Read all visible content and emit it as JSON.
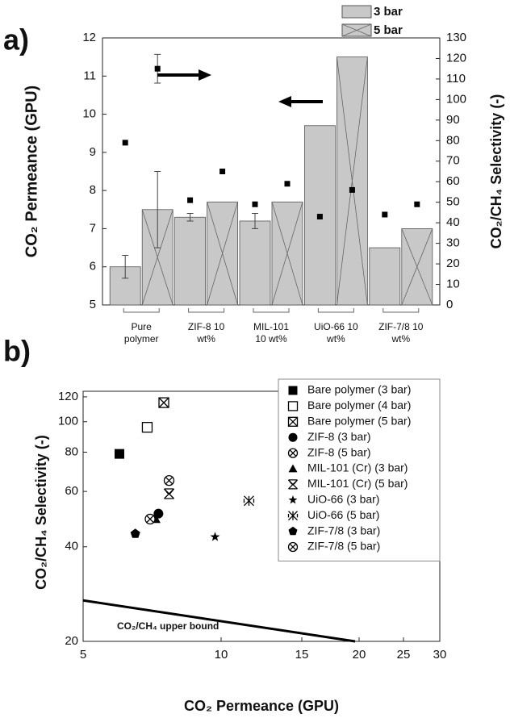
{
  "chart_data": [
    {
      "type": "bar",
      "panel_label": "a)",
      "y_label": "CO₂ Permeance (GPU)",
      "y2_label": "CO₂/CH₄ Selectivity (-)",
      "categories": [
        "Pure polymer",
        "ZIF-8 10 wt%",
        "MIL-101 10 wt%",
        "UiO-66 10 wt%",
        "ZIF-7/8 10 wt%"
      ],
      "series": [
        {
          "name": "3 bar",
          "color": "#c8c8c8",
          "values": [
            6.0,
            7.3,
            7.2,
            9.7,
            6.5
          ],
          "errors": [
            0.3,
            0.1,
            0.2,
            null,
            null
          ]
        },
        {
          "name": "5 bar",
          "color": "#c8c8c8",
          "hatch": "x",
          "values": [
            7.5,
            7.7,
            7.7,
            11.5,
            7.0
          ],
          "errors": [
            1.0,
            null,
            null,
            null,
            null
          ]
        },
        {
          "axis": "y2",
          "marker": "square",
          "color": "#000000",
          "values": [
            79,
            51,
            49,
            43,
            44
          ]
        },
        {
          "axis": "y2",
          "marker": "square",
          "color": "#000000",
          "values": [
            115,
            65,
            59,
            56,
            49
          ],
          "errors": [
            7,
            null,
            null,
            null,
            null
          ]
        }
      ],
      "ylim": [
        5,
        12
      ],
      "yticks": [
        5,
        6,
        7,
        8,
        9,
        10,
        11,
        12
      ],
      "y2lim": [
        0,
        130
      ],
      "y2ticks": [
        0,
        10,
        20,
        30,
        40,
        50,
        60,
        70,
        80,
        90,
        100,
        110,
        120,
        130
      ],
      "legend": "top-right"
    },
    {
      "type": "scatter",
      "panel_label": "b)",
      "x_label": "CO₂ Permeance (GPU)",
      "y_label": "CO₂/CH₄ Selectivity (-)",
      "xscale": "log",
      "yscale": "log",
      "xlim": [
        5,
        30
      ],
      "ylim": [
        20,
        125
      ],
      "xticks": [
        5,
        10,
        15,
        20,
        25,
        30
      ],
      "yticks": [
        20,
        40,
        60,
        80,
        100,
        120
      ],
      "legend": "top-right",
      "series": [
        {
          "name": "Bare polymer (3 bar)",
          "marker": "square",
          "color": "#000000",
          "x": [
            6.0
          ],
          "values": [
            79
          ]
        },
        {
          "name": "Bare polymer (4 bar)",
          "marker": "open-square",
          "color": "#000000",
          "x": [
            6.9
          ],
          "values": [
            96
          ]
        },
        {
          "name": "Bare polymer (5 bar)",
          "marker": "boxed-x",
          "color": "#000000",
          "x": [
            7.5
          ],
          "values": [
            115
          ]
        },
        {
          "name": "ZIF-8 (3 bar)",
          "marker": "circle",
          "color": "#000000",
          "x": [
            7.3
          ],
          "values": [
            51
          ]
        },
        {
          "name": "ZIF-8 (5 bar)",
          "marker": "circled-x",
          "color": "#000000",
          "x": [
            7.7
          ],
          "values": [
            65
          ]
        },
        {
          "name": "MIL-101 (Cr) (3 bar)",
          "marker": "triangle",
          "color": "#000000",
          "x": [
            7.2
          ],
          "values": [
            49
          ]
        },
        {
          "name": "MIL-101 (Cr) (5 bar)",
          "marker": "hourglass-x",
          "color": "#000000",
          "x": [
            7.7
          ],
          "values": [
            59
          ]
        },
        {
          "name": "UiO-66 (3 bar)",
          "marker": "star",
          "color": "#000000",
          "x": [
            9.7
          ],
          "values": [
            43
          ]
        },
        {
          "name": "UiO-66 (5 bar)",
          "marker": "asterisk",
          "color": "#000000",
          "x": [
            11.5
          ],
          "values": [
            56
          ]
        },
        {
          "name": "ZIF-7/8 (3 bar)",
          "marker": "pentagon",
          "color": "#000000",
          "x": [
            6.5
          ],
          "values": [
            44
          ]
        },
        {
          "name": "ZIF-7/8 (5 bar)",
          "marker": "circled-x",
          "color": "#000000",
          "x": [
            7.0
          ],
          "values": [
            49
          ]
        }
      ],
      "upper_bound": {
        "type": "line",
        "color": "#000000",
        "x": [
          5,
          19.6
        ],
        "values": [
          27,
          20
        ],
        "label": "CO₂/CH₄ upper bound"
      }
    }
  ]
}
